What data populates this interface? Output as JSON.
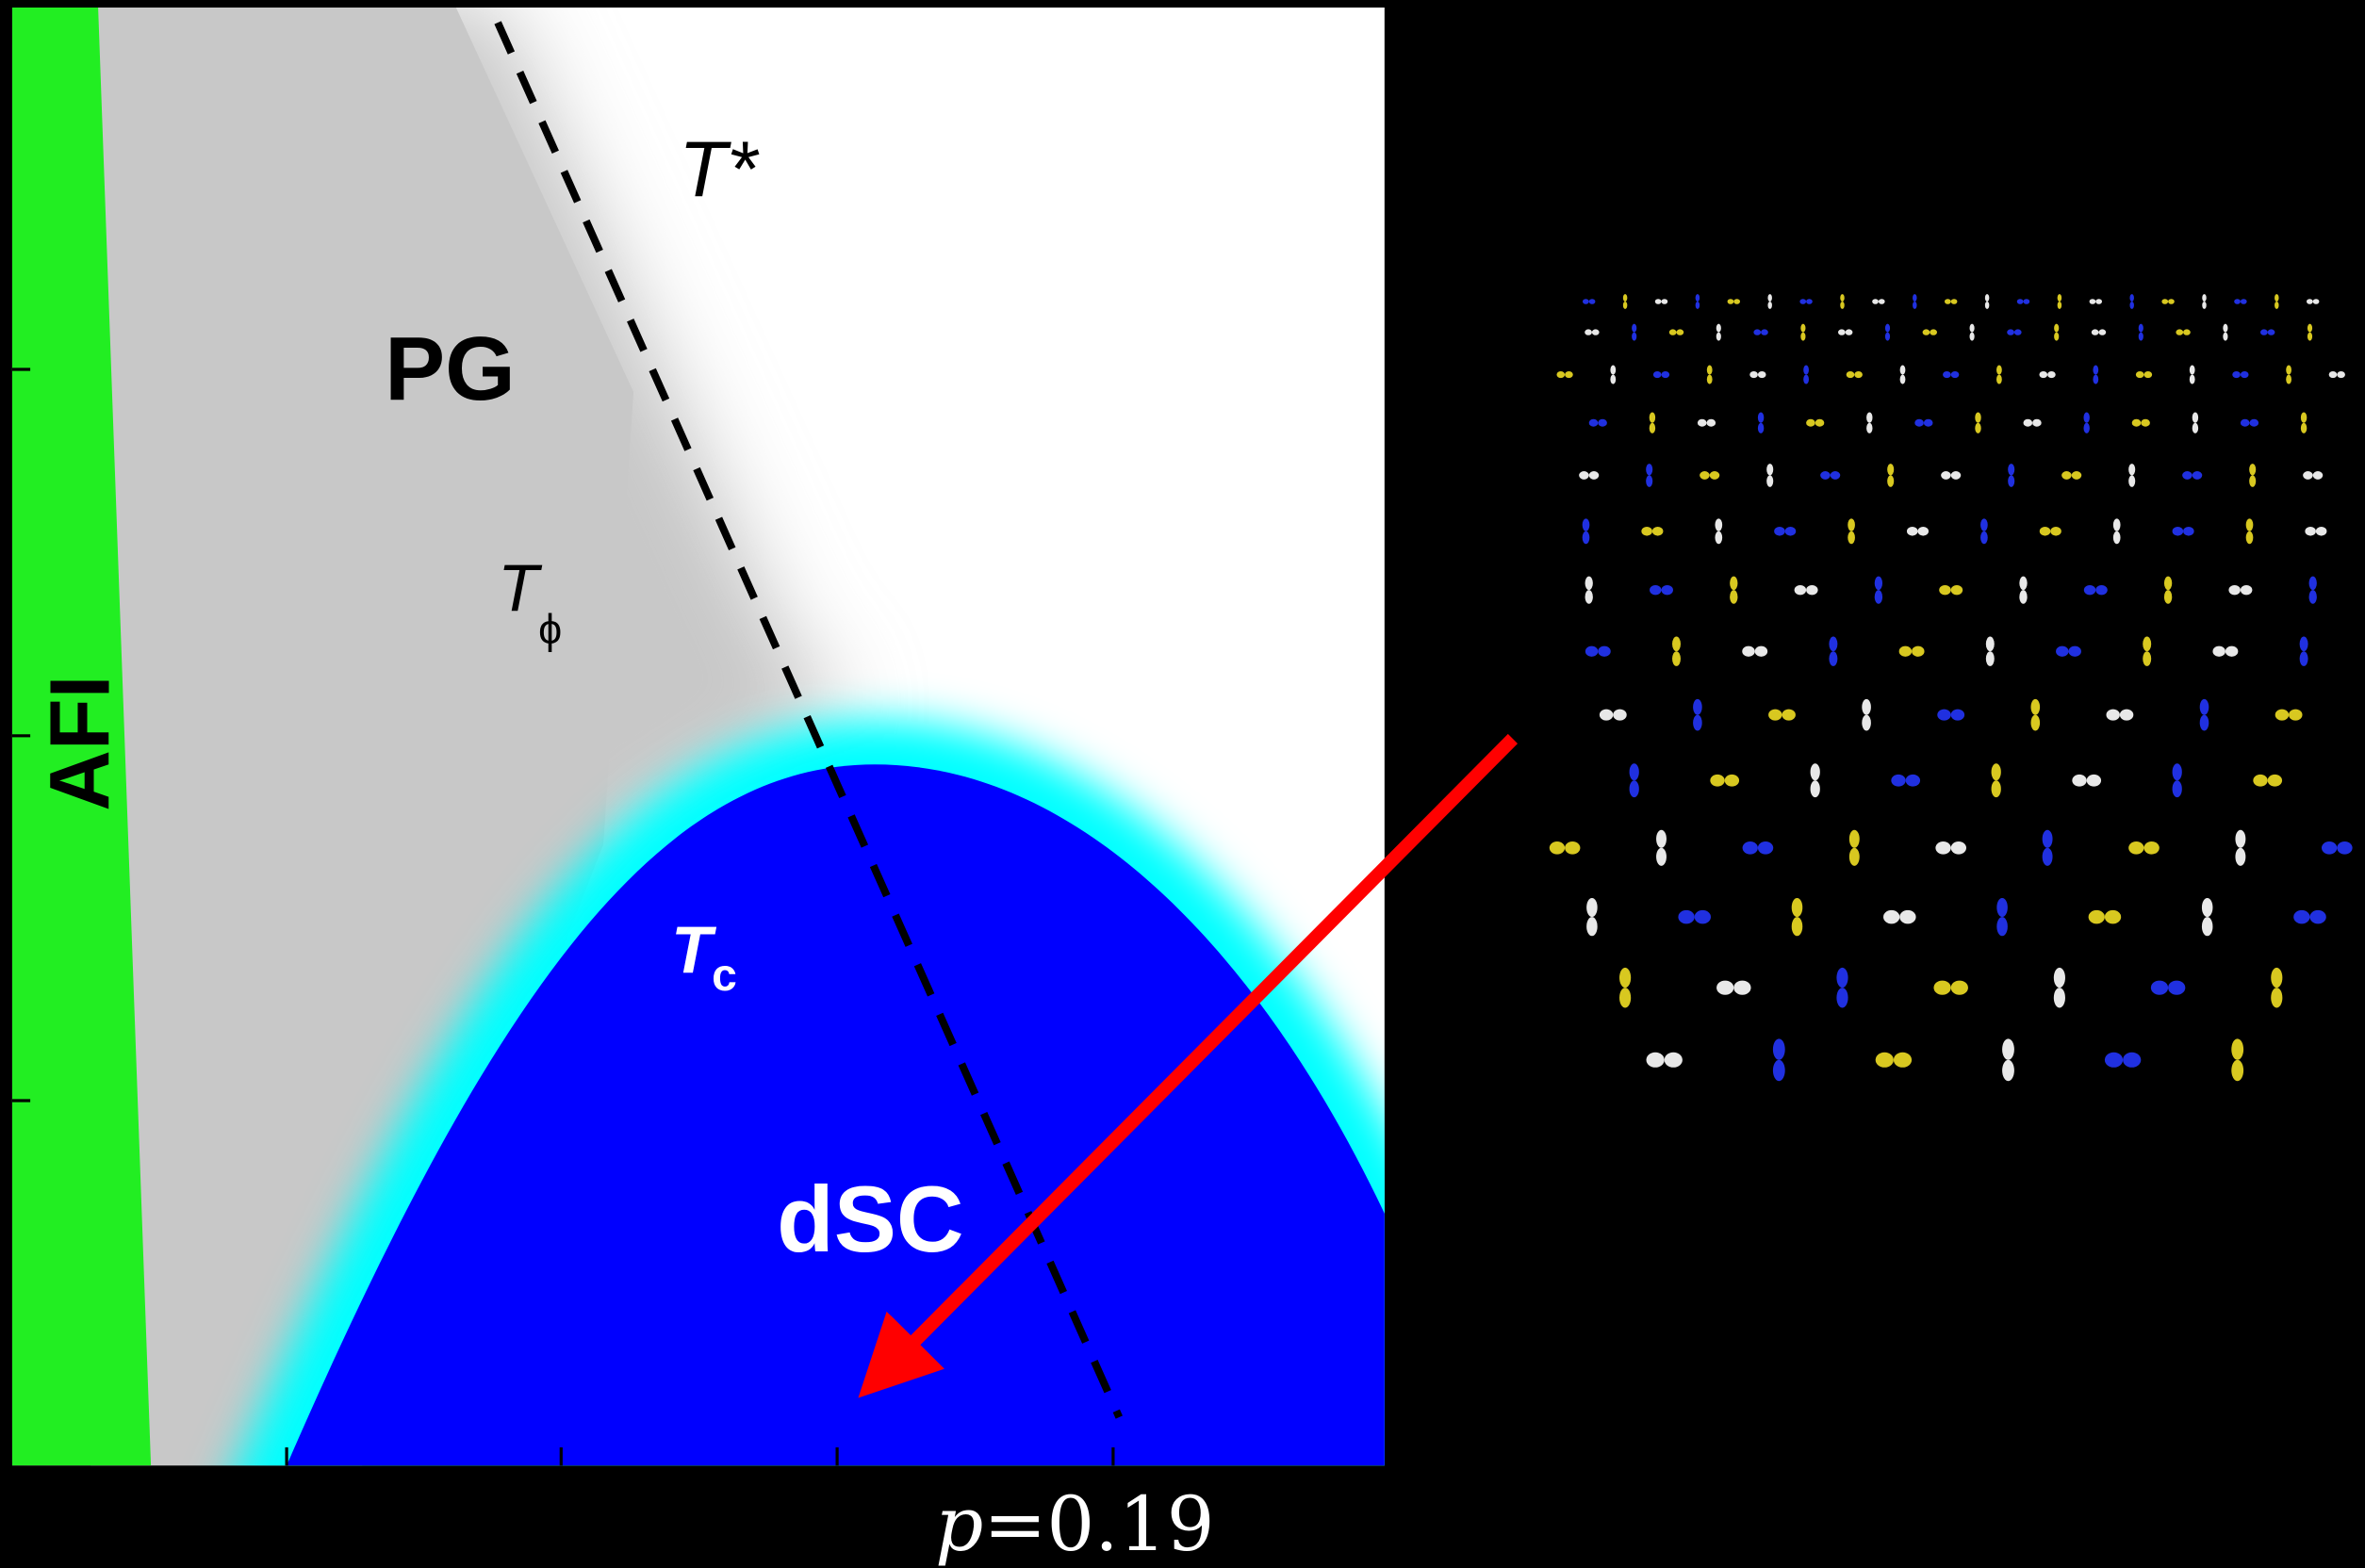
{
  "diagram": {
    "labels": {
      "t_star": "T*",
      "pg": "PG",
      "t_phi": {
        "symbol": "T",
        "subscript": "ϕ"
      },
      "afi": "AFI",
      "t_c": {
        "symbol": "T",
        "subscript": "c"
      },
      "dsc": "dSC",
      "doping": {
        "variable": "p",
        "value": "=0.19"
      }
    }
  }
}
